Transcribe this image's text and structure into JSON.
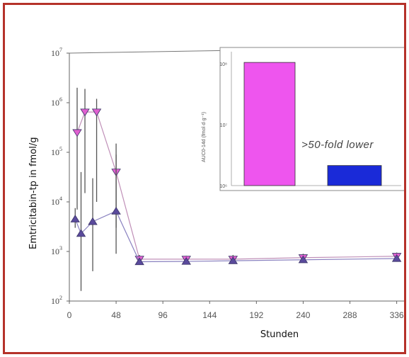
{
  "chart_data": [
    {
      "type": "line",
      "xlabel": "Stunden",
      "ylabel": "Emtricitabin-tp in fmol/g",
      "y_scale": "log",
      "ylim": [
        100,
        10000000
      ],
      "xlim": [
        0,
        345
      ],
      "x_ticks": [
        0,
        48,
        96,
        144,
        192,
        240,
        288,
        336
      ],
      "y_ticks": [
        {
          "value": 100,
          "base": "10",
          "exp": "2"
        },
        {
          "value": 1000,
          "base": "10",
          "exp": "3"
        },
        {
          "value": 10000,
          "base": "10",
          "exp": "4"
        },
        {
          "value": 100000,
          "base": "10",
          "exp": "5"
        },
        {
          "value": 1000000,
          "base": "10",
          "exp": "6"
        },
        {
          "value": 10000000,
          "base": "10",
          "exp": "7"
        }
      ],
      "series": [
        {
          "color": "#e060d0",
          "line_color": "#c090b8",
          "marker": "triangle-down",
          "x": [
            8,
            16,
            28,
            48,
            72,
            120,
            168,
            240,
            336
          ],
          "y": [
            250000,
            650000,
            650000,
            40000,
            700,
            700,
            700,
            750,
            800
          ],
          "err_low": [
            7000,
            15000,
            10000,
            3000,
            550,
            580,
            600,
            620,
            650
          ],
          "err_high": [
            2000000,
            1900000,
            1200000,
            150000,
            850,
            820,
            850,
            900,
            950
          ]
        },
        {
          "color": "#5a4a9c",
          "line_color": "#8a82c0",
          "marker": "triangle-up",
          "x": [
            6,
            12,
            24,
            48,
            72,
            120,
            168,
            240,
            336
          ],
          "y": [
            4500,
            2300,
            4000,
            6500,
            620,
            630,
            650,
            680,
            720
          ],
          "err_low": [
            3000,
            160,
            400,
            900,
            560,
            570,
            580,
            600,
            620
          ],
          "err_high": [
            7500,
            40000,
            30000,
            90000,
            700,
            700,
            720,
            760,
            800
          ]
        }
      ]
    },
    {
      "type": "bar",
      "ylabel": "AUC0-14d (fmol·d·g⁻¹)",
      "y_scale": "log",
      "y_tick_labels": [
        "10⁸",
        "10⁷",
        "10⁶"
      ],
      "values_relative": [
        0.92,
        0.15
      ],
      "colors": [
        "#ee55ee",
        "#1a2ad8"
      ],
      "annotation": ">50-fold lower"
    }
  ]
}
